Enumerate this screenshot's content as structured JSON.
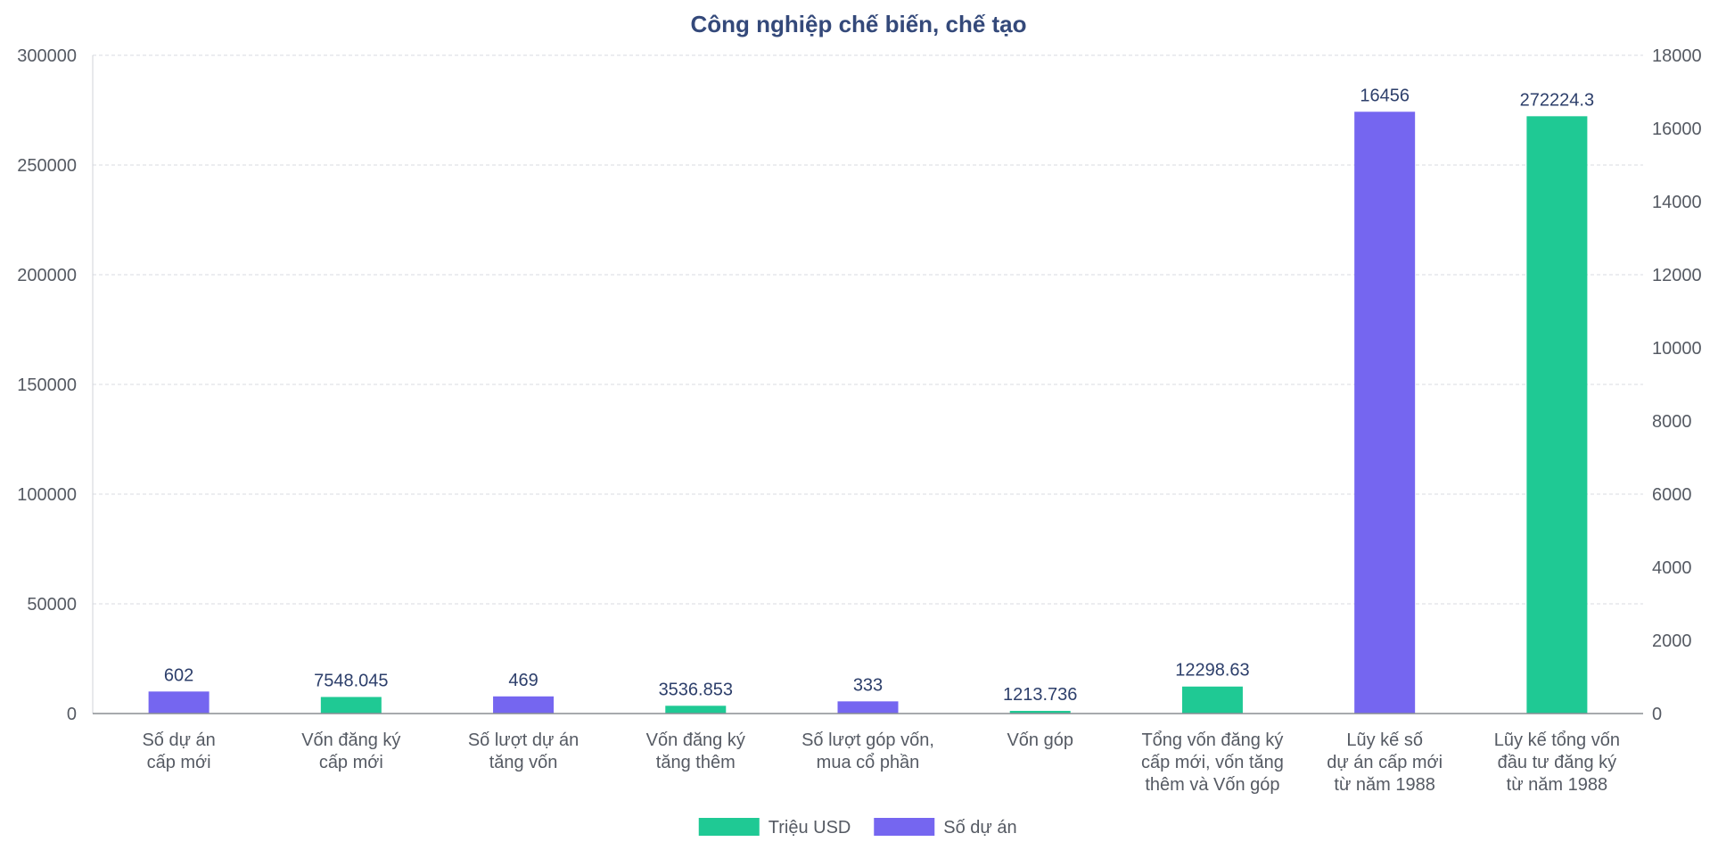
{
  "chart_data": {
    "type": "bar",
    "title": "Công nghiệp chế biến, chế tạo",
    "categories": [
      [
        "Số dự án",
        "cấp mới"
      ],
      [
        "Vốn đăng ký",
        "cấp mới"
      ],
      [
        "Số lượt dự án",
        "tăng vốn"
      ],
      [
        "Vốn đăng ký",
        "tăng thêm"
      ],
      [
        "Số lượt góp vốn,",
        "mua cổ phần"
      ],
      [
        "Vốn góp"
      ],
      [
        "Tổng vốn đăng ký",
        "cấp mới, vốn tăng",
        "thêm và Vốn góp"
      ],
      [
        "Lũy kế số",
        "dự án cấp mới",
        "từ năm 1988"
      ],
      [
        "Lũy kế tổng vốn",
        "đầu tư đăng ký",
        "từ năm 1988"
      ]
    ],
    "series": [
      {
        "name": "Triệu USD",
        "color": "#1fc994",
        "axis": "left",
        "values": [
          null,
          7548.045,
          null,
          3536.853,
          null,
          1213.736,
          12298.63,
          null,
          272224.3
        ],
        "labels": [
          "",
          "7548.045",
          "",
          "3536.853",
          "",
          "1213.736",
          "12298.63",
          "",
          "272224.3"
        ]
      },
      {
        "name": "Số dự án",
        "color": "#7566f0",
        "axis": "right",
        "values": [
          602,
          null,
          469,
          null,
          333,
          null,
          null,
          16456,
          null
        ],
        "labels": [
          "602",
          "",
          "469",
          "",
          "333",
          "",
          "",
          "16456",
          ""
        ]
      }
    ],
    "y_left": {
      "min": 0,
      "max": 300000,
      "ticks": [
        "0",
        "50000",
        "100000",
        "150000",
        "200000",
        "250000",
        "300000"
      ]
    },
    "y_right": {
      "min": 0,
      "max": 18000,
      "ticks": [
        "0",
        "2000",
        "4000",
        "6000",
        "8000",
        "10000",
        "12000",
        "14000",
        "16000",
        "18000"
      ]
    },
    "grid": true,
    "legend_position": "bottom-center"
  }
}
